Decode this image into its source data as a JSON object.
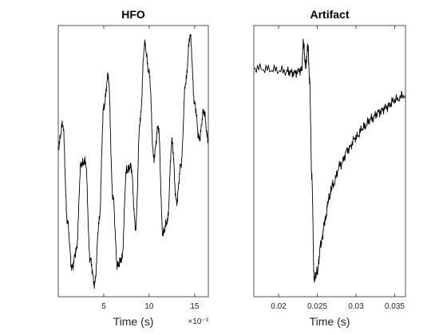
{
  "chart_data": [
    {
      "type": "line",
      "title": "HFO",
      "xlabel": "Time (s)",
      "ylabel": "",
      "x_exponent": "×10⁻³",
      "xlim": [
        0,
        0.0165
      ],
      "ylim": [
        -1.15,
        1.0
      ],
      "xticks": [
        0.005,
        0.01,
        0.015
      ],
      "xtick_labels": [
        "5",
        "10",
        "15"
      ],
      "yticks": [],
      "grid": false,
      "series": [
        {
          "color": "#000000",
          "x": [
            0,
            0.0005,
            0.001,
            0.0015,
            0.002,
            0.0025,
            0.003,
            0.0035,
            0.004,
            0.0045,
            0.005,
            0.0055,
            0.006,
            0.0065,
            0.007,
            0.0075,
            0.008,
            0.0085,
            0.009,
            0.0095,
            0.01,
            0.0105,
            0.011,
            0.0115,
            0.012,
            0.0125,
            0.013,
            0.0135,
            0.014,
            0.0145,
            0.015,
            0.0155,
            0.016,
            0.0165
          ],
          "y": [
            0.04,
            0.22,
            -0.55,
            -0.92,
            -0.78,
            -0.1,
            -0.08,
            -0.85,
            -1.05,
            -0.55,
            0.35,
            0.6,
            -0.35,
            -0.9,
            -0.85,
            -0.15,
            -0.12,
            -0.6,
            0.25,
            0.85,
            0.62,
            -0.05,
            0.2,
            -0.65,
            -0.55,
            0.08,
            -0.4,
            -0.1,
            0.55,
            0.92,
            0.38,
            0.1,
            0.32,
            0.08
          ]
        }
      ]
    },
    {
      "type": "line",
      "title": "Artifact",
      "xlabel": "Time (s)",
      "ylabel": "",
      "xlim": [
        0.0168,
        0.0364
      ],
      "ylim": [
        -1.0,
        0.6
      ],
      "xticks": [
        0.02,
        0.025,
        0.03,
        0.035
      ],
      "xtick_labels": [
        "0.02",
        "0.025",
        "0.03",
        "0.035"
      ],
      "yticks": [],
      "grid": false,
      "series": [
        {
          "color": "#000000",
          "x": [
            0.0168,
            0.019,
            0.021,
            0.022,
            0.023,
            0.0232,
            0.0235,
            0.0238,
            0.024,
            0.0243,
            0.0246,
            0.025,
            0.0255,
            0.026,
            0.0265,
            0.027,
            0.028,
            0.029,
            0.03,
            0.031,
            0.032,
            0.033,
            0.034,
            0.035,
            0.0364
          ],
          "y": [
            0.35,
            0.34,
            0.33,
            0.32,
            0.34,
            0.5,
            0.36,
            0.48,
            0.28,
            -0.3,
            -0.9,
            -0.85,
            -0.68,
            -0.55,
            -0.42,
            -0.34,
            -0.22,
            -0.13,
            -0.06,
            0.0,
            0.05,
            0.09,
            0.12,
            0.16,
            0.19
          ]
        }
      ]
    }
  ]
}
